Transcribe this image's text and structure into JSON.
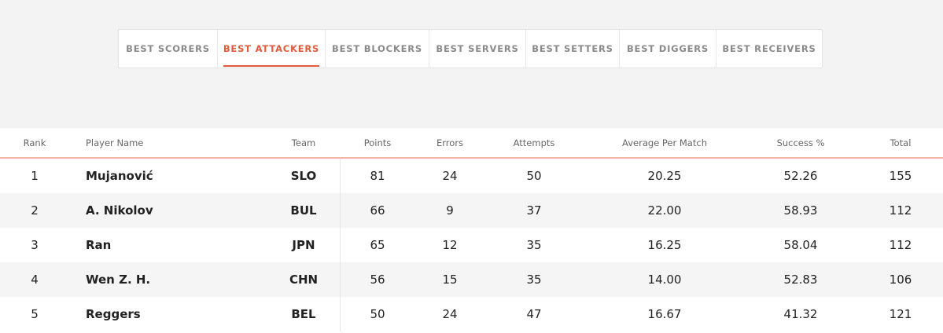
{
  "tabs": [
    {
      "label": "BEST SCORERS",
      "active": false
    },
    {
      "label": "BEST ATTACKERS",
      "active": true
    },
    {
      "label": "BEST BLOCKERS",
      "active": false
    },
    {
      "label": "BEST SERVERS",
      "active": false
    },
    {
      "label": "BEST SETTERS",
      "active": false
    },
    {
      "label": "BEST DIGGERS",
      "active": false
    },
    {
      "label": "BEST RECEIVERS",
      "active": false
    }
  ],
  "table": {
    "columns": [
      "Rank",
      "Player Name",
      "Team",
      "Points",
      "Errors",
      "Attempts",
      "Average Per Match",
      "Success %",
      "Total"
    ],
    "rows": [
      [
        "1",
        "Mujanović",
        "SLO",
        "81",
        "24",
        "50",
        "20.25",
        "52.26",
        "155"
      ],
      [
        "2",
        "A. Nikolov",
        "BUL",
        "66",
        "9",
        "37",
        "22.00",
        "58.93",
        "112"
      ],
      [
        "3",
        "Ran",
        "JPN",
        "65",
        "12",
        "35",
        "16.25",
        "58.04",
        "112"
      ],
      [
        "4",
        "Wen Z. H.",
        "CHN",
        "56",
        "15",
        "35",
        "14.00",
        "52.83",
        "106"
      ],
      [
        "5",
        "Reggers",
        "BEL",
        "50",
        "24",
        "47",
        "16.67",
        "41.32",
        "121"
      ]
    ]
  }
}
